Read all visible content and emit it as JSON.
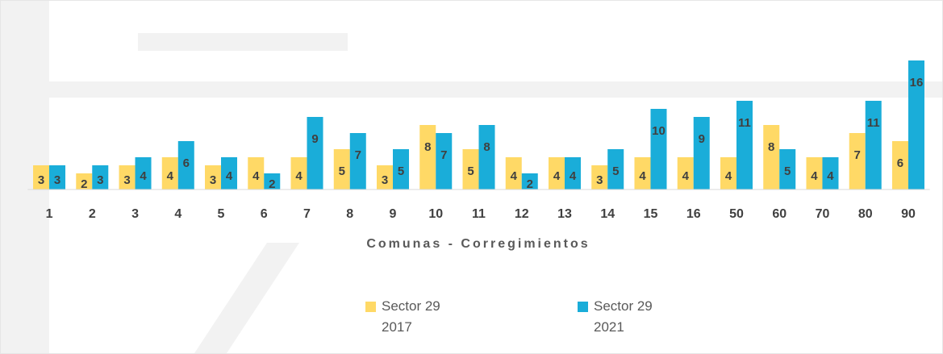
{
  "chart_data": {
    "type": "bar",
    "x_label": "Comunas - Corregimientos",
    "categories": [
      "1",
      "2",
      "3",
      "4",
      "5",
      "6",
      "7",
      "8",
      "9",
      "10",
      "11",
      "12",
      "13",
      "14",
      "15",
      "16",
      "50",
      "60",
      "70",
      "80",
      "90"
    ],
    "series": [
      {
        "name": "Sector 29 2017",
        "color": "#ffd966",
        "values": [
          3,
          2,
          3,
          4,
          3,
          4,
          4,
          5,
          3,
          8,
          5,
          4,
          4,
          3,
          4,
          4,
          4,
          8,
          4,
          7,
          6
        ]
      },
      {
        "name": "Sector 29 2021",
        "color": "#1aadd9",
        "values": [
          3,
          3,
          4,
          6,
          4,
          2,
          9,
          7,
          5,
          7,
          8,
          2,
          4,
          5,
          10,
          9,
          11,
          5,
          4,
          11,
          16
        ]
      }
    ]
  }
}
